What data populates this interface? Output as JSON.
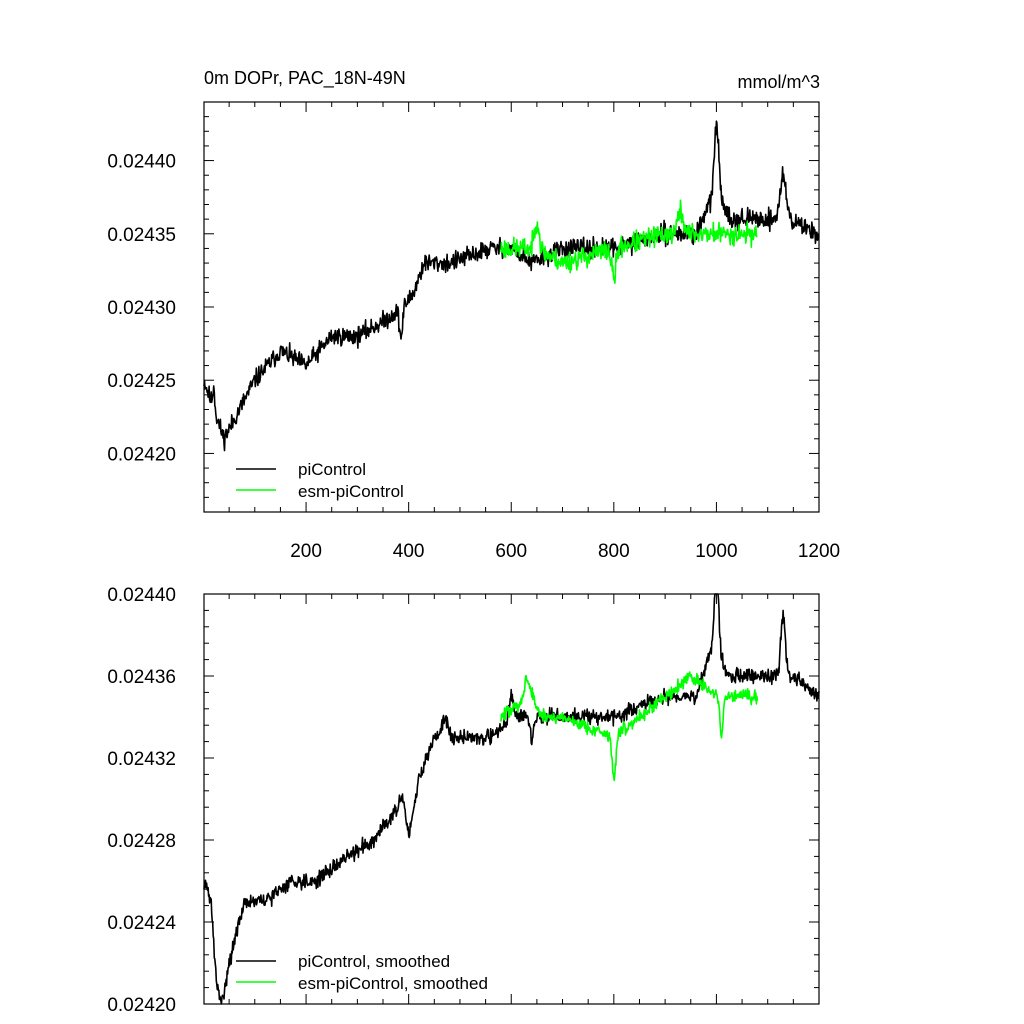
{
  "chart_data": [
    {
      "type": "line",
      "title": "0m DOPr, PAC_18N-49N",
      "units_label": "mmol/m^3",
      "xlabel": "",
      "ylabel": "",
      "xlim": [
        1,
        1200
      ],
      "ylim": [
        0.02416,
        0.02444
      ],
      "xticks": [
        200,
        400,
        600,
        800,
        1000,
        1200
      ],
      "yticks": [
        0.0242,
        0.02425,
        0.0243,
        0.02435,
        0.0244
      ],
      "ytick_labels": [
        "0.02420",
        "0.02425",
        "0.02430",
        "0.02435",
        "0.02440"
      ],
      "xtick_labels": [
        "200",
        "400",
        "600",
        "800",
        "1000",
        "1200"
      ],
      "legend": "bottom-left",
      "series": [
        {
          "name": "piControl",
          "color": "#000000",
          "x_start": 1,
          "x_end": 1200,
          "seed": 11,
          "noise": 3.2e-06,
          "anchors": [
            [
              1,
              0.02425
            ],
            [
              20,
              0.02423
            ],
            [
              40,
              0.02421
            ],
            [
              70,
              0.02423
            ],
            [
              100,
              0.02425
            ],
            [
              150,
              0.02427
            ],
            [
              200,
              0.02426
            ],
            [
              250,
              0.02428
            ],
            [
              300,
              0.02428
            ],
            [
              350,
              0.02429
            ],
            [
              390,
              0.0243
            ],
            [
              410,
              0.02431
            ],
            [
              430,
              0.02433
            ],
            [
              480,
              0.02433
            ],
            [
              560,
              0.02434
            ],
            [
              600,
              0.02434
            ],
            [
              640,
              0.02433
            ],
            [
              700,
              0.02434
            ],
            [
              800,
              0.02434
            ],
            [
              900,
              0.02435
            ],
            [
              960,
              0.02435
            ],
            [
              1000,
              0.02438
            ],
            [
              1030,
              0.02436
            ],
            [
              1100,
              0.02436
            ],
            [
              1140,
              0.02436
            ],
            [
              1200,
              0.02435
            ]
          ],
          "events": [
            [
              1000,
              4.5e-05,
              6
            ],
            [
              1130,
              3e-05,
              8
            ],
            [
              385,
              -2e-05,
              4
            ],
            [
              20,
              1.5e-05,
              3
            ]
          ]
        },
        {
          "name": "esm-piControl",
          "color": "#00ff00",
          "x_start": 580,
          "x_end": 1080,
          "seed": 23,
          "noise": 3.6e-06,
          "anchors": [
            [
              580,
              0.02434
            ],
            [
              650,
              0.02434
            ],
            [
              700,
              0.02433
            ],
            [
              800,
              0.02434
            ],
            [
              900,
              0.02435
            ],
            [
              1000,
              0.02435
            ],
            [
              1080,
              0.02435
            ]
          ],
          "events": [
            [
              650,
              2e-05,
              6
            ],
            [
              800,
              -2e-05,
              6
            ],
            [
              930,
              1.5e-05,
              8
            ]
          ]
        }
      ]
    },
    {
      "type": "line",
      "title": "",
      "xlabel": "",
      "ylabel": "",
      "xlim": [
        1,
        1200
      ],
      "ylim": [
        0.0242,
        0.0244
      ],
      "xticks": [
        200,
        400,
        600,
        800,
        1000,
        1200
      ],
      "yticks": [
        0.0242,
        0.02424,
        0.02428,
        0.02432,
        0.02436,
        0.0244
      ],
      "ytick_labels": [
        "0.02420",
        "0.02424",
        "0.02428",
        "0.02432",
        "0.02436",
        "0.02440"
      ],
      "legend": "bottom-left",
      "series": [
        {
          "name": "piControl, smoothed",
          "color": "#000000",
          "x_start": 1,
          "x_end": 1200,
          "seed": 31,
          "noise": 1.8e-06,
          "anchors": [
            [
              1,
              0.02426
            ],
            [
              15,
              0.02425
            ],
            [
              25,
              0.02421
            ],
            [
              35,
              0.0242
            ],
            [
              50,
              0.02422
            ],
            [
              80,
              0.02425
            ],
            [
              120,
              0.02425
            ],
            [
              170,
              0.02426
            ],
            [
              220,
              0.02426
            ],
            [
              270,
              0.02427
            ],
            [
              330,
              0.02428
            ],
            [
              390,
              0.0243
            ],
            [
              400,
              0.02428
            ],
            [
              420,
              0.02431
            ],
            [
              450,
              0.02433
            ],
            [
              500,
              0.02433
            ],
            [
              560,
              0.02433
            ],
            [
              600,
              0.02434
            ],
            [
              640,
              0.02434
            ],
            [
              700,
              0.02434
            ],
            [
              800,
              0.02434
            ],
            [
              900,
              0.02435
            ],
            [
              960,
              0.02435
            ],
            [
              1000,
              0.02438
            ],
            [
              1020,
              0.02436
            ],
            [
              1100,
              0.02436
            ],
            [
              1150,
              0.02436
            ],
            [
              1200,
              0.02435
            ]
          ],
          "events": [
            [
              1000,
              4e-05,
              5
            ],
            [
              1130,
              3e-05,
              6
            ],
            [
              470,
              1e-05,
              8
            ],
            [
              600,
              1e-05,
              6
            ],
            [
              640,
              -1e-05,
              5
            ]
          ]
        },
        {
          "name": "esm-piControl, smoothed",
          "color": "#00ff00",
          "x_start": 580,
          "x_end": 1080,
          "seed": 47,
          "noise": 1.6e-06,
          "anchors": [
            [
              580,
              0.02434
            ],
            [
              640,
              0.02435
            ],
            [
              660,
              0.02434
            ],
            [
              700,
              0.02434
            ],
            [
              800,
              0.02433
            ],
            [
              850,
              0.02434
            ],
            [
              900,
              0.02435
            ],
            [
              950,
              0.02436
            ],
            [
              1000,
              0.02435
            ],
            [
              1080,
              0.02435
            ]
          ],
          "events": [
            [
              630,
              1e-05,
              8
            ],
            [
              800,
              -2e-05,
              5
            ],
            [
              1010,
              -2e-05,
              4
            ]
          ]
        }
      ]
    }
  ]
}
